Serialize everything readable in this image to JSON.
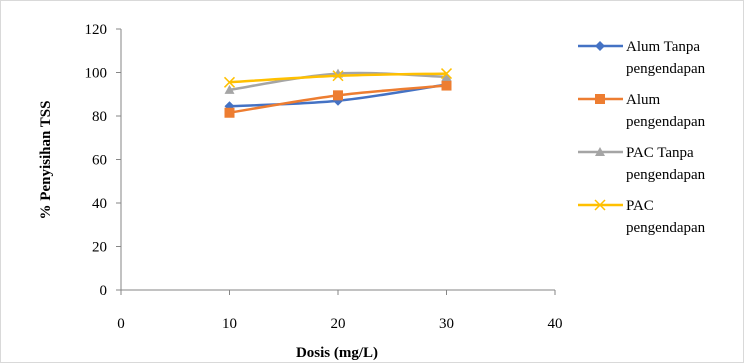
{
  "chart_data": {
    "type": "line",
    "title": "",
    "xlabel": "Dosis (mg/L)",
    "ylabel": "% Penyisihan TSS",
    "xlim": [
      0,
      40
    ],
    "ylim": [
      0,
      120
    ],
    "xticks": [
      0,
      10,
      20,
      30,
      40
    ],
    "yticks": [
      0,
      20,
      40,
      60,
      80,
      100,
      120
    ],
    "grid": false,
    "legend_position": "right",
    "series": [
      {
        "name_lines": [
          "Alum Tanpa",
          "pengendapan"
        ],
        "x": [
          10,
          20,
          30
        ],
        "y": [
          84.5,
          87,
          94.5
        ],
        "color": "#4472C4",
        "marker": "diamond"
      },
      {
        "name_lines": [
          "Alum",
          "pengendapan"
        ],
        "x": [
          10,
          20,
          30
        ],
        "y": [
          81.5,
          89.5,
          94
        ],
        "color": "#ED7D31",
        "marker": "square"
      },
      {
        "name_lines": [
          "PAC  Tanpa",
          "pengendapan"
        ],
        "x": [
          10,
          20,
          30
        ],
        "y": [
          92,
          99.5,
          98
        ],
        "color": "#A5A5A5",
        "marker": "triangle"
      },
      {
        "name_lines": [
          "PAC",
          "pengendapan"
        ],
        "x": [
          10,
          20,
          30
        ],
        "y": [
          95.5,
          98.5,
          99.5
        ],
        "color": "#FFC000",
        "marker": "x"
      }
    ]
  }
}
